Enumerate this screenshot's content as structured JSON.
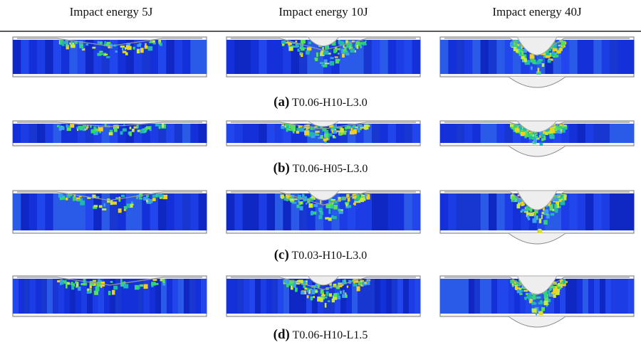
{
  "columns": [
    "Impact energy 5J",
    "Impact energy 10J",
    "Impact energy 40J"
  ],
  "rows": [
    {
      "label": "(a)",
      "name": "T0.06-H10-L3.0"
    },
    {
      "label": "(b)",
      "name": "T0.06-H05-L3.0"
    },
    {
      "label": "(c)",
      "name": "T0.03-H10-L3.0"
    },
    {
      "label": "(d)",
      "name": "T0.06-H10-L1.5"
    }
  ]
}
